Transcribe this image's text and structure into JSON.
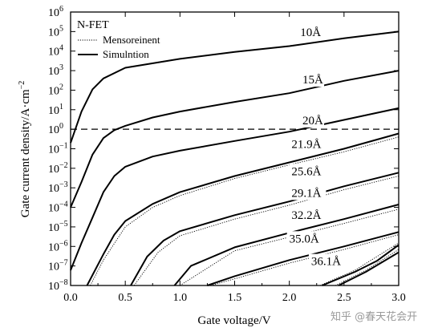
{
  "chart_data": {
    "type": "line",
    "title": "",
    "xlabel": "Gate voltage/V",
    "ylabel_parts": [
      "Gate current density/A·cm",
      "−2"
    ],
    "xlim": [
      0,
      3.0
    ],
    "ylim_exp": [
      -8,
      6
    ],
    "yscale": "log",
    "x_ticks": [
      "0.0",
      "0.5",
      "1.0",
      "1.5",
      "2.0",
      "2.5",
      "3.0"
    ],
    "y_tick_base": "10",
    "y_tick_exponents": [
      "6",
      "5",
      "4",
      "3",
      "2",
      "1",
      "0",
      "−1",
      "−2",
      "−3",
      "−4",
      "−5",
      "−6",
      "−7",
      "−8"
    ],
    "reference_line": {
      "y": 1,
      "style": "dashed"
    },
    "legend": {
      "title": "N-FET",
      "placement": "top-left",
      "items": [
        {
          "label": "Mensoreinent",
          "style": "dotted"
        },
        {
          "label": "Simulntion",
          "style": "solid"
        }
      ]
    },
    "series": [
      {
        "name": "10Å",
        "simulation": [
          [
            0.0,
            0.2
          ],
          [
            0.1,
            8
          ],
          [
            0.2,
            110
          ],
          [
            0.3,
            400
          ],
          [
            0.5,
            1400
          ],
          [
            1.0,
            4000
          ],
          [
            1.5,
            9000
          ],
          [
            2.0,
            18000
          ],
          [
            2.5,
            45000
          ],
          [
            3.0,
            100000
          ]
        ]
      },
      {
        "name": "15Å",
        "simulation": [
          [
            0.0,
            0.0001
          ],
          [
            0.1,
            0.002
          ],
          [
            0.2,
            0.05
          ],
          [
            0.3,
            0.35
          ],
          [
            0.4,
            0.9
          ],
          [
            0.5,
            1.5
          ],
          [
            0.75,
            4
          ],
          [
            1.0,
            8
          ],
          [
            1.5,
            25
          ],
          [
            2.0,
            70
          ],
          [
            2.5,
            300
          ],
          [
            3.0,
            1000
          ]
        ]
      },
      {
        "name": "20Å",
        "simulation": [
          [
            0.0,
            6e-08
          ],
          [
            0.1,
            1.5e-06
          ],
          [
            0.2,
            3e-05
          ],
          [
            0.3,
            0.0006
          ],
          [
            0.4,
            0.004
          ],
          [
            0.5,
            0.012
          ],
          [
            0.75,
            0.04
          ],
          [
            1.0,
            0.08
          ],
          [
            1.5,
            0.25
          ],
          [
            2.0,
            0.75
          ],
          [
            2.5,
            3
          ],
          [
            3.0,
            12
          ]
        ]
      },
      {
        "name": "21.9Å",
        "simulation": [
          [
            0.15,
            1e-08
          ],
          [
            0.3,
            4e-07
          ],
          [
            0.4,
            4e-06
          ],
          [
            0.5,
            2e-05
          ],
          [
            0.75,
            0.00015
          ],
          [
            1.0,
            0.0006
          ],
          [
            1.5,
            0.004
          ],
          [
            2.0,
            0.02
          ],
          [
            2.5,
            0.1
          ],
          [
            3.0,
            0.6
          ]
        ],
        "measurement": [
          [
            0.18,
            1e-08
          ],
          [
            0.3,
            2e-07
          ],
          [
            0.5,
            1e-05
          ],
          [
            0.75,
            0.0001
          ],
          [
            1.0,
            0.0004
          ],
          [
            1.5,
            0.003
          ],
          [
            2.0,
            0.015
          ],
          [
            2.5,
            0.07
          ],
          [
            3.0,
            0.4
          ]
        ]
      },
      {
        "name": "25.6Å",
        "simulation": [
          [
            0.55,
            1e-08
          ],
          [
            0.7,
            3e-07
          ],
          [
            0.85,
            2e-06
          ],
          [
            1.0,
            6e-06
          ],
          [
            1.5,
            4e-05
          ],
          [
            2.0,
            0.0002
          ],
          [
            2.5,
            0.0012
          ],
          [
            3.0,
            0.006
          ]
        ],
        "measurement": [
          [
            0.58,
            1e-08
          ],
          [
            0.8,
            5e-07
          ],
          [
            1.0,
            3.5e-06
          ],
          [
            1.5,
            2.5e-05
          ],
          [
            2.0,
            0.00013
          ],
          [
            2.5,
            0.0008
          ],
          [
            3.0,
            0.004
          ]
        ]
      },
      {
        "name": "29.1Å",
        "simulation": [
          [
            0.95,
            1e-08
          ],
          [
            1.1,
            1e-07
          ],
          [
            1.5,
            9e-07
          ],
          [
            2.0,
            5e-06
          ],
          [
            2.5,
            2.5e-05
          ],
          [
            3.0,
            0.00014
          ]
        ],
        "measurement": [
          [
            1.0,
            1e-08
          ],
          [
            1.5,
            6e-07
          ],
          [
            2.0,
            3e-06
          ],
          [
            2.5,
            1.5e-05
          ],
          [
            3.0,
            8e-05
          ]
        ]
      },
      {
        "name": "32.2Å",
        "simulation": [
          [
            1.25,
            1e-08
          ],
          [
            1.5,
            3e-08
          ],
          [
            2.0,
            2e-07
          ],
          [
            2.5,
            1e-06
          ],
          [
            3.0,
            5.5e-06
          ]
        ],
        "measurement": [
          [
            1.28,
            1e-08
          ],
          [
            1.5,
            2.2e-08
          ],
          [
            2.0,
            1.4e-07
          ],
          [
            2.5,
            7e-07
          ],
          [
            3.0,
            4e-06
          ]
        ]
      },
      {
        "name": "35.0Å",
        "simulation": [
          [
            2.3,
            1e-08
          ],
          [
            2.6,
            5e-08
          ],
          [
            2.8,
            1.8e-07
          ],
          [
            3.0,
            1.2e-06
          ]
        ],
        "measurement": [
          [
            2.28,
            1e-08
          ],
          [
            2.6,
            6e-08
          ],
          [
            3.0,
            1.5e-06
          ]
        ]
      },
      {
        "name": "36.1Å",
        "simulation": [
          [
            2.45,
            1e-08
          ],
          [
            2.7,
            5e-08
          ],
          [
            3.0,
            5e-07
          ]
        ],
        "measurement": [
          [
            2.42,
            1e-08
          ],
          [
            2.7,
            6e-08
          ],
          [
            3.0,
            7e-07
          ]
        ]
      }
    ],
    "annotations": [
      {
        "text": "10Å",
        "x": 2.1,
        "y": 60000
      },
      {
        "text": "15Å",
        "x": 2.12,
        "y": 220
      },
      {
        "text": "20Å",
        "x": 2.12,
        "y": 1.8
      },
      {
        "text": "21.9Å",
        "x": 2.02,
        "y": 0.11
      },
      {
        "text": "25.6Å",
        "x": 2.02,
        "y": 0.0045
      },
      {
        "text": "29.1Å",
        "x": 2.02,
        "y": 0.00035
      },
      {
        "text": "32.2Å",
        "x": 2.02,
        "y": 2.5e-05
      },
      {
        "text": "35.0Å",
        "x": 2.0,
        "y": 1.6e-06
      },
      {
        "text": "36.1Å",
        "x": 2.2,
        "y": 1.1e-07
      }
    ]
  },
  "watermark": "知乎 @春天花会开"
}
